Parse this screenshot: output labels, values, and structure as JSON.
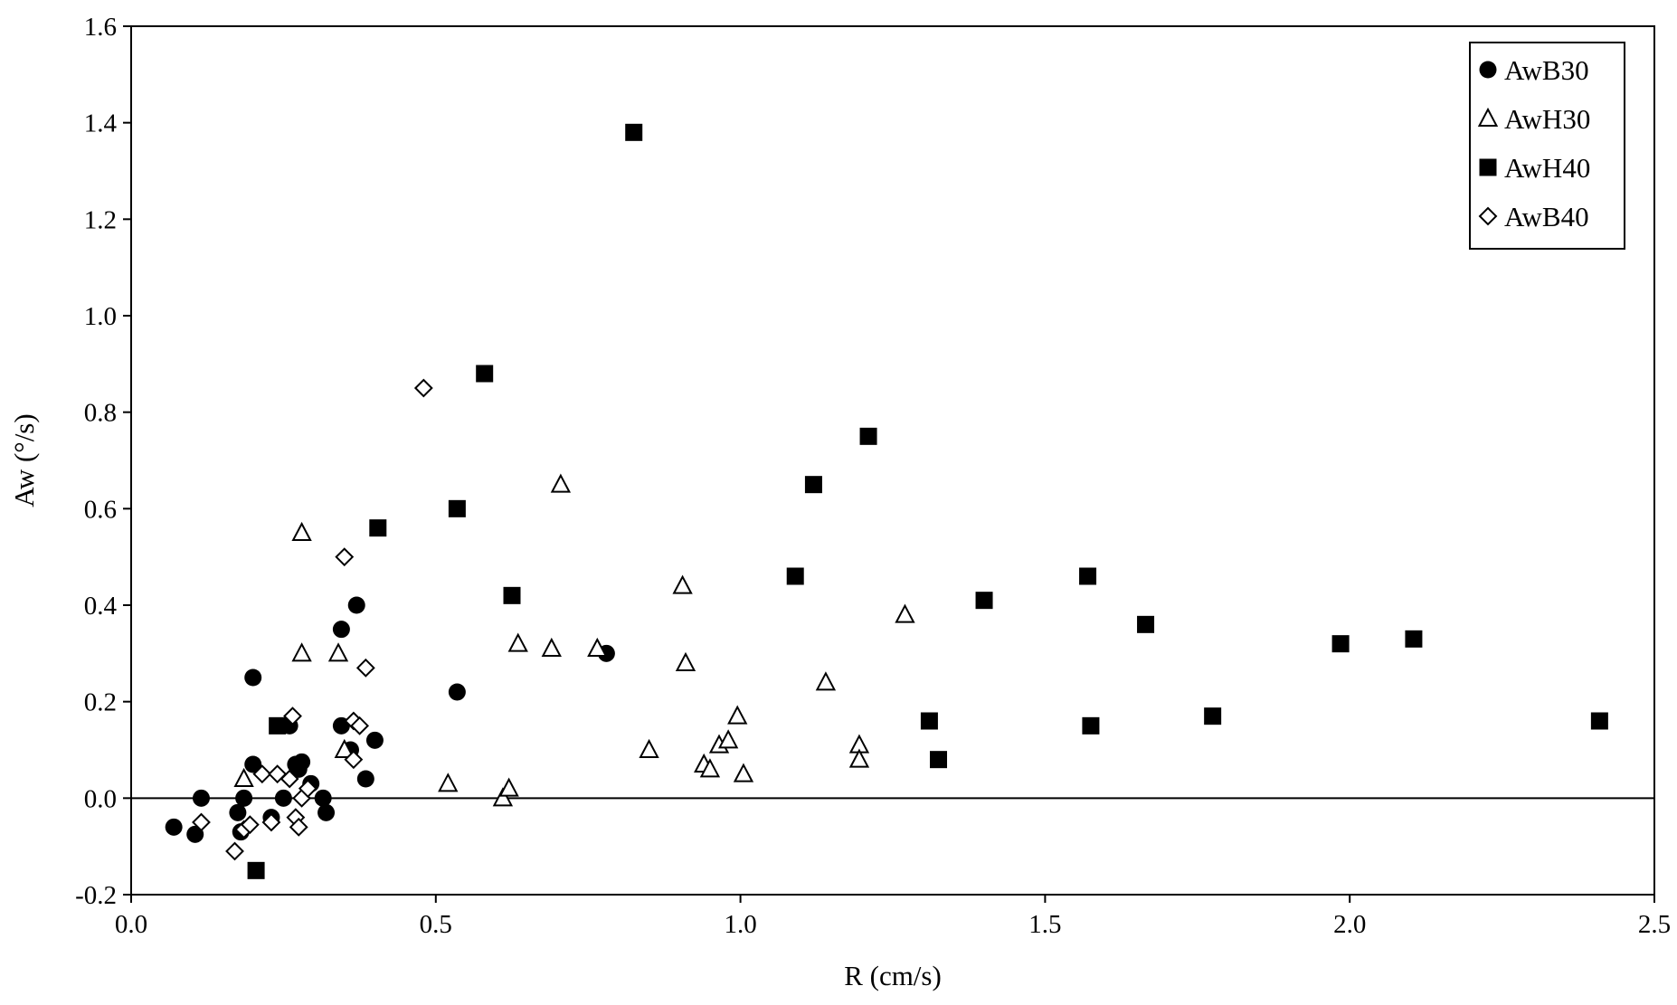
{
  "chart_data": {
    "type": "scatter",
    "title": "",
    "xlabel": "R (cm/s)",
    "ylabel": "Aw (°/s)",
    "xlim": [
      0.0,
      2.5
    ],
    "ylim": [
      -0.2,
      1.6
    ],
    "x_ticks": [
      "0.0",
      "0.5",
      "1.0",
      "1.5",
      "2.0",
      "2.5"
    ],
    "y_ticks": [
      "-0.2",
      "0.0",
      "0.2",
      "0.4",
      "0.6",
      "0.8",
      "1.0",
      "1.2",
      "1.4",
      "1.6"
    ],
    "grid": false,
    "zero_line": true,
    "legend_position": "top-right",
    "series": [
      {
        "name": "AwB30",
        "marker": "circle-filled",
        "color": "#000000",
        "points": [
          [
            0.07,
            -0.06
          ],
          [
            0.105,
            -0.075
          ],
          [
            0.115,
            0.0
          ],
          [
            0.175,
            -0.03
          ],
          [
            0.18,
            -0.07
          ],
          [
            0.185,
            0.0
          ],
          [
            0.2,
            0.25
          ],
          [
            0.2,
            0.07
          ],
          [
            0.23,
            -0.04
          ],
          [
            0.25,
            0.0
          ],
          [
            0.26,
            0.15
          ],
          [
            0.27,
            0.07
          ],
          [
            0.275,
            0.06
          ],
          [
            0.28,
            0.075
          ],
          [
            0.295,
            0.03
          ],
          [
            0.315,
            0.0
          ],
          [
            0.32,
            -0.03
          ],
          [
            0.345,
            0.35
          ],
          [
            0.345,
            0.15
          ],
          [
            0.36,
            0.1
          ],
          [
            0.37,
            0.4
          ],
          [
            0.385,
            0.04
          ],
          [
            0.4,
            0.12
          ],
          [
            0.535,
            0.22
          ],
          [
            0.78,
            0.3
          ]
        ]
      },
      {
        "name": "AwH30",
        "marker": "triangle-open",
        "color": "#000000",
        "points": [
          [
            0.185,
            0.04
          ],
          [
            0.28,
            0.55
          ],
          [
            0.28,
            0.3
          ],
          [
            0.34,
            0.3
          ],
          [
            0.35,
            0.1
          ],
          [
            0.52,
            0.03
          ],
          [
            0.61,
            0.0
          ],
          [
            0.62,
            0.02
          ],
          [
            0.635,
            0.32
          ],
          [
            0.69,
            0.31
          ],
          [
            0.705,
            0.65
          ],
          [
            0.765,
            0.31
          ],
          [
            0.85,
            0.1
          ],
          [
            0.905,
            0.44
          ],
          [
            0.91,
            0.28
          ],
          [
            0.94,
            0.07
          ],
          [
            0.95,
            0.06
          ],
          [
            0.965,
            0.11
          ],
          [
            0.98,
            0.12
          ],
          [
            0.995,
            0.17
          ],
          [
            1.005,
            0.05
          ],
          [
            1.14,
            0.24
          ],
          [
            1.195,
            0.11
          ],
          [
            1.195,
            0.08
          ],
          [
            1.27,
            0.38
          ]
        ]
      },
      {
        "name": "AwH40",
        "marker": "square-filled",
        "color": "#000000",
        "points": [
          [
            0.205,
            -0.15
          ],
          [
            0.24,
            0.15
          ],
          [
            0.405,
            0.56
          ],
          [
            0.535,
            0.6
          ],
          [
            0.58,
            0.88
          ],
          [
            0.625,
            0.42
          ],
          [
            0.825,
            1.38
          ],
          [
            1.09,
            0.46
          ],
          [
            1.12,
            0.65
          ],
          [
            1.21,
            0.75
          ],
          [
            1.31,
            0.16
          ],
          [
            1.325,
            0.08
          ],
          [
            1.4,
            0.41
          ],
          [
            1.57,
            0.46
          ],
          [
            1.575,
            0.15
          ],
          [
            1.665,
            0.36
          ],
          [
            1.775,
            0.17
          ],
          [
            1.985,
            0.32
          ],
          [
            2.105,
            0.33
          ],
          [
            2.41,
            0.16
          ]
        ]
      },
      {
        "name": "AwB40",
        "marker": "diamond-open",
        "color": "#000000",
        "points": [
          [
            0.115,
            -0.05
          ],
          [
            0.17,
            -0.11
          ],
          [
            0.185,
            -0.065
          ],
          [
            0.195,
            -0.055
          ],
          [
            0.215,
            0.05
          ],
          [
            0.23,
            -0.05
          ],
          [
            0.24,
            0.05
          ],
          [
            0.26,
            0.04
          ],
          [
            0.265,
            0.17
          ],
          [
            0.27,
            -0.04
          ],
          [
            0.275,
            -0.06
          ],
          [
            0.28,
            0.0
          ],
          [
            0.29,
            0.02
          ],
          [
            0.35,
            0.5
          ],
          [
            0.365,
            0.16
          ],
          [
            0.365,
            0.08
          ],
          [
            0.375,
            0.15
          ],
          [
            0.385,
            0.27
          ],
          [
            0.48,
            0.85
          ]
        ]
      }
    ]
  }
}
